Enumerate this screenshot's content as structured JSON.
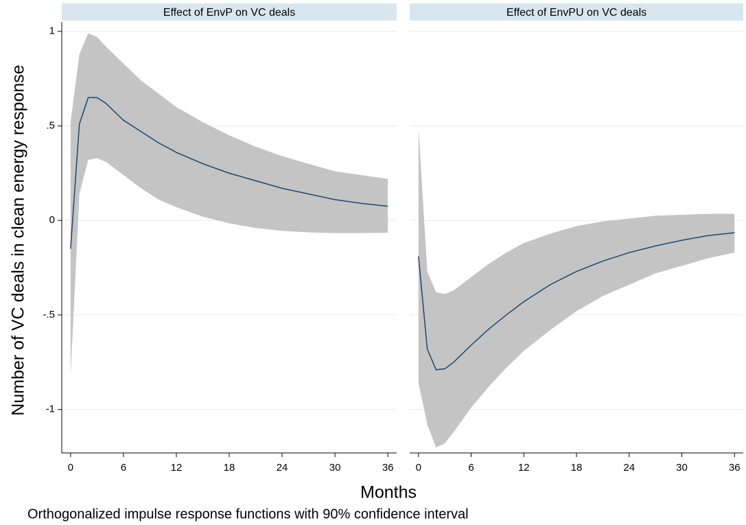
{
  "chart_data": [
    {
      "type": "line",
      "title": "Effect of EnvP on VC deals",
      "x": [
        0,
        1,
        2,
        3,
        4,
        6,
        8,
        10,
        12,
        15,
        18,
        21,
        24,
        27,
        30,
        33,
        36
      ],
      "values": [
        -0.15,
        0.51,
        0.65,
        0.65,
        0.62,
        0.53,
        0.47,
        0.41,
        0.36,
        0.3,
        0.25,
        0.21,
        0.17,
        0.14,
        0.11,
        0.09,
        0.075
      ],
      "upper": [
        0.52,
        0.88,
        0.99,
        0.97,
        0.92,
        0.83,
        0.74,
        0.67,
        0.6,
        0.52,
        0.45,
        0.39,
        0.34,
        0.3,
        0.26,
        0.24,
        0.22
      ],
      "lower": [
        -0.82,
        0.14,
        0.32,
        0.33,
        0.31,
        0.24,
        0.17,
        0.11,
        0.07,
        0.02,
        -0.015,
        -0.04,
        -0.055,
        -0.063,
        -0.067,
        -0.067,
        -0.065
      ],
      "color": "#1a476f",
      "band_color": "#c4c4c4",
      "xlim": [
        -1,
        37
      ],
      "xticks": [
        0,
        6,
        12,
        18,
        24,
        30,
        36
      ],
      "ylim": [
        -1.23,
        1.05
      ],
      "yticks": [
        -1,
        {
          "value": -0.5,
          "label": "-.5"
        },
        0,
        {
          "value": 0.5,
          "label": ".5"
        },
        1
      ],
      "grid": true
    },
    {
      "type": "line",
      "title": "Effect of EnvPU on VC deals",
      "x": [
        0,
        1,
        2,
        3,
        4,
        6,
        8,
        10,
        12,
        15,
        18,
        21,
        24,
        27,
        30,
        33,
        36
      ],
      "values": [
        -0.19,
        -0.68,
        -0.79,
        -0.785,
        -0.75,
        -0.66,
        -0.575,
        -0.5,
        -0.43,
        -0.34,
        -0.27,
        -0.215,
        -0.17,
        -0.135,
        -0.105,
        -0.08,
        -0.065
      ],
      "upper": [
        0.49,
        -0.27,
        -0.38,
        -0.39,
        -0.37,
        -0.3,
        -0.23,
        -0.17,
        -0.12,
        -0.07,
        -0.03,
        -0.005,
        0.01,
        0.025,
        0.03,
        0.035,
        0.035
      ],
      "lower": [
        -0.86,
        -1.08,
        -1.2,
        -1.18,
        -1.12,
        -0.99,
        -0.88,
        -0.78,
        -0.69,
        -0.58,
        -0.48,
        -0.4,
        -0.34,
        -0.28,
        -0.24,
        -0.2,
        -0.17
      ],
      "color": "#1a476f",
      "band_color": "#c4c4c4",
      "xlim": [
        -1,
        37
      ],
      "xticks": [
        0,
        6,
        12,
        18,
        24,
        30,
        36
      ],
      "ylim": [
        -1.23,
        1.05
      ],
      "yticks": [
        -1,
        {
          "value": -0.5,
          "label": "-.5"
        },
        0,
        {
          "value": 0.5,
          "label": ".5"
        },
        1
      ],
      "grid": true
    }
  ],
  "ylabel": "Number of VC deals in clean energy response",
  "xlabel": "Months",
  "note": "Orthogonalized impulse response functions with 90% confidence interval"
}
